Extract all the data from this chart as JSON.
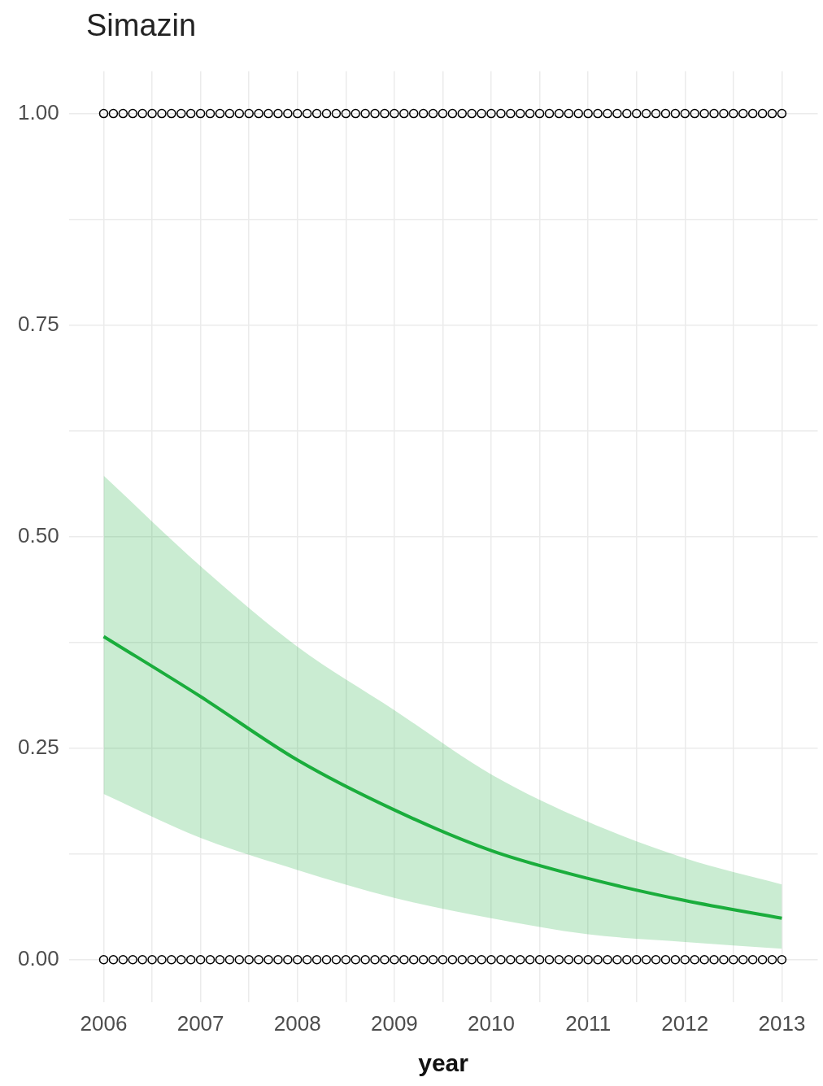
{
  "chart_data": {
    "type": "line",
    "title": "Simazin",
    "xlabel": "year",
    "xlim": [
      2005.64,
      2013.37
    ],
    "ylim": [
      -0.05,
      1.05
    ],
    "xticks": [
      2006,
      {
        "value": 2006.5,
        "label": null
      },
      2007,
      {
        "value": 2007.5,
        "label": null
      },
      2008,
      {
        "value": 2008.5,
        "label": null
      },
      2009,
      {
        "value": 2009.5,
        "label": null
      },
      2010,
      {
        "value": 2010.5,
        "label": null
      },
      2011,
      {
        "value": 2011.5,
        "label": null
      },
      2012,
      {
        "value": 2012.5,
        "label": null
      },
      2013
    ],
    "yticks": [
      {
        "value": 0,
        "label": "0.00"
      },
      {
        "value": 0.125,
        "label": null
      },
      {
        "value": 0.25,
        "label": "0.25"
      },
      {
        "value": 0.375,
        "label": null
      },
      {
        "value": 0.5,
        "label": "0.50"
      },
      {
        "value": 0.625,
        "label": null
      },
      {
        "value": 0.75,
        "label": "0.75"
      },
      {
        "value": 0.875,
        "label": null
      },
      {
        "value": 1,
        "label": "1.00"
      }
    ],
    "grid": true,
    "legend": false,
    "series": [
      {
        "type": "scatter",
        "color": "#000000",
        "marker": "circle",
        "x": [
          2006,
          2006.1,
          2006.2,
          2006.3,
          2006.4,
          2006.5,
          2006.6,
          2006.7,
          2006.8,
          2006.9,
          2007,
          2007.1,
          2007.2,
          2007.3,
          2007.4,
          2007.5,
          2007.6,
          2007.7,
          2007.8,
          2007.9,
          2008,
          2008.1,
          2008.2,
          2008.3,
          2008.4,
          2008.5,
          2008.6,
          2008.7,
          2008.8,
          2008.9,
          2009,
          2009.1,
          2009.2,
          2009.3,
          2009.4,
          2009.5,
          2009.6,
          2009.7,
          2009.8,
          2009.9,
          2010,
          2010.1,
          2010.2,
          2010.3,
          2010.4,
          2010.5,
          2010.6,
          2010.7,
          2010.8,
          2010.9,
          2011,
          2011.1,
          2011.2,
          2011.3,
          2011.4,
          2011.5,
          2011.6,
          2011.7,
          2011.8,
          2011.9,
          2012,
          2012.1,
          2012.2,
          2012.3,
          2012.4,
          2012.5,
          2012.6,
          2012.7,
          2012.8,
          2012.9,
          2013
        ],
        "values": [
          1,
          1,
          1,
          1,
          1,
          1,
          1,
          1,
          1,
          1,
          1,
          1,
          1,
          1,
          1,
          1,
          1,
          1,
          1,
          1,
          1,
          1,
          1,
          1,
          1,
          1,
          1,
          1,
          1,
          1,
          1,
          1,
          1,
          1,
          1,
          1,
          1,
          1,
          1,
          1,
          1,
          1,
          1,
          1,
          1,
          1,
          1,
          1,
          1,
          1,
          1,
          1,
          1,
          1,
          1,
          1,
          1,
          1,
          1,
          1,
          1,
          1,
          1,
          1,
          1,
          1,
          1,
          1,
          1,
          1,
          1
        ]
      },
      {
        "type": "scatter",
        "color": "#000000",
        "marker": "circle",
        "x": [
          2006,
          2006.1,
          2006.2,
          2006.3,
          2006.4,
          2006.5,
          2006.6,
          2006.7,
          2006.8,
          2006.9,
          2007,
          2007.1,
          2007.2,
          2007.3,
          2007.4,
          2007.5,
          2007.6,
          2007.7,
          2007.8,
          2007.9,
          2008,
          2008.1,
          2008.2,
          2008.3,
          2008.4,
          2008.5,
          2008.6,
          2008.7,
          2008.8,
          2008.9,
          2009,
          2009.1,
          2009.2,
          2009.3,
          2009.4,
          2009.5,
          2009.6,
          2009.7,
          2009.8,
          2009.9,
          2010,
          2010.1,
          2010.2,
          2010.3,
          2010.4,
          2010.5,
          2010.6,
          2010.7,
          2010.8,
          2010.9,
          2011,
          2011.1,
          2011.2,
          2011.3,
          2011.4,
          2011.5,
          2011.6,
          2011.7,
          2011.8,
          2011.9,
          2012,
          2012.1,
          2012.2,
          2012.3,
          2012.4,
          2012.5,
          2012.6,
          2012.7,
          2012.8,
          2012.9,
          2013
        ],
        "values": [
          0,
          0,
          0,
          0,
          0,
          0,
          0,
          0,
          0,
          0,
          0,
          0,
          0,
          0,
          0,
          0,
          0,
          0,
          0,
          0,
          0,
          0,
          0,
          0,
          0,
          0,
          0,
          0,
          0,
          0,
          0,
          0,
          0,
          0,
          0,
          0,
          0,
          0,
          0,
          0,
          0,
          0,
          0,
          0,
          0,
          0,
          0,
          0,
          0,
          0,
          0,
          0,
          0,
          0,
          0,
          0,
          0,
          0,
          0,
          0,
          0,
          0,
          0,
          0,
          0,
          0,
          0,
          0,
          0,
          0,
          0
        ]
      },
      {
        "color": "#1aad3c",
        "marker": "none",
        "line_style": "solid",
        "x": [
          2006,
          2007,
          2008,
          2009,
          2010,
          2011,
          2012,
          2013
        ],
        "values": [
          0.382,
          0.311,
          0.236,
          0.177,
          0.129,
          0.096,
          0.07,
          0.049
        ],
        "lower": [
          0.196,
          0.144,
          0.106,
          0.073,
          0.049,
          0.03,
          0.021,
          0.013
        ],
        "upper": [
          0.572,
          0.465,
          0.37,
          0.295,
          0.219,
          0.163,
          0.12,
          0.089
        ]
      }
    ]
  }
}
